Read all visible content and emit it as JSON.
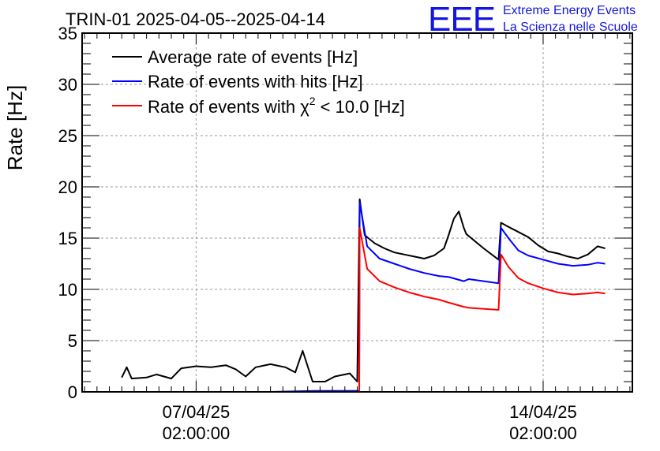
{
  "chart_data": {
    "type": "line",
    "title": "TRIN-01 2025-04-05--2025-04-14",
    "ylabel": "Rate [Hz]",
    "xlabel": "",
    "ylim": [
      0,
      35
    ],
    "y_ticks": [
      "0",
      "5",
      "10",
      "15",
      "20",
      "25",
      "30",
      "35"
    ],
    "x_ticks": [
      {
        "x": 2.0,
        "line1": "07/04/25",
        "line2": "02:00:00"
      },
      {
        "x": 9.0,
        "line1": "14/04/25",
        "line2": "02:00:00"
      }
    ],
    "xlim": [
      -0.3,
      10.8
    ],
    "grid": true,
    "legend_position": "top-left",
    "series": [
      {
        "name": "Average rate of events [Hz]",
        "color": "#000000",
        "points": [
          [
            0.5,
            1.4
          ],
          [
            0.6,
            2.4
          ],
          [
            0.7,
            1.3
          ],
          [
            1.0,
            1.4
          ],
          [
            1.2,
            1.7
          ],
          [
            1.5,
            1.3
          ],
          [
            1.7,
            2.3
          ],
          [
            2.0,
            2.5
          ],
          [
            2.3,
            2.4
          ],
          [
            2.6,
            2.6
          ],
          [
            2.8,
            2.2
          ],
          [
            3.0,
            1.5
          ],
          [
            3.2,
            2.4
          ],
          [
            3.5,
            2.7
          ],
          [
            3.8,
            2.4
          ],
          [
            4.0,
            1.9
          ],
          [
            4.15,
            4.0
          ],
          [
            4.35,
            1.0
          ],
          [
            4.6,
            1.0
          ],
          [
            4.8,
            1.5
          ],
          [
            5.1,
            1.8
          ],
          [
            5.25,
            1.0
          ],
          [
            5.3,
            18.8
          ],
          [
            5.4,
            15.3
          ],
          [
            5.6,
            14.5
          ],
          [
            5.8,
            14.0
          ],
          [
            6.0,
            13.6
          ],
          [
            6.2,
            13.4
          ],
          [
            6.4,
            13.2
          ],
          [
            6.6,
            13.0
          ],
          [
            6.8,
            13.3
          ],
          [
            7.0,
            14.0
          ],
          [
            7.1,
            15.4
          ],
          [
            7.2,
            16.9
          ],
          [
            7.3,
            17.6
          ],
          [
            7.4,
            16.0
          ],
          [
            7.45,
            15.4
          ],
          [
            7.8,
            14.0
          ],
          [
            8.1,
            12.9
          ],
          [
            8.15,
            16.5
          ],
          [
            8.3,
            16.1
          ],
          [
            8.5,
            15.6
          ],
          [
            8.7,
            15.1
          ],
          [
            8.9,
            14.3
          ],
          [
            9.1,
            13.7
          ],
          [
            9.3,
            13.5
          ],
          [
            9.5,
            13.2
          ],
          [
            9.7,
            13.0
          ],
          [
            9.9,
            13.4
          ],
          [
            10.1,
            14.2
          ],
          [
            10.25,
            14.0
          ]
        ]
      },
      {
        "name": "Rate of events with hits [Hz]",
        "color": "#0000ff",
        "points": [
          [
            0.5,
            0.0
          ],
          [
            3.5,
            0.0
          ],
          [
            4.4,
            0.1
          ],
          [
            4.7,
            0.1
          ],
          [
            5.29,
            0.1
          ],
          [
            5.3,
            18.5
          ],
          [
            5.45,
            14.2
          ],
          [
            5.7,
            13.0
          ],
          [
            6.0,
            12.5
          ],
          [
            6.3,
            12.0
          ],
          [
            6.6,
            11.6
          ],
          [
            6.9,
            11.3
          ],
          [
            7.1,
            11.2
          ],
          [
            7.4,
            10.8
          ],
          [
            7.5,
            11.0
          ],
          [
            8.1,
            10.6
          ],
          [
            8.15,
            16.0
          ],
          [
            8.3,
            15.0
          ],
          [
            8.5,
            13.8
          ],
          [
            8.7,
            13.3
          ],
          [
            9.0,
            12.9
          ],
          [
            9.3,
            12.5
          ],
          [
            9.6,
            12.3
          ],
          [
            9.9,
            12.4
          ],
          [
            10.1,
            12.6
          ],
          [
            10.25,
            12.5
          ]
        ]
      },
      {
        "name": "Rate of events with χ² < 10.0 [Hz]",
        "color": "#ff0000",
        "points": [
          [
            0.5,
            0.0
          ],
          [
            5.29,
            0.0
          ],
          [
            5.3,
            16.0
          ],
          [
            5.45,
            12.0
          ],
          [
            5.7,
            10.8
          ],
          [
            6.0,
            10.2
          ],
          [
            6.3,
            9.7
          ],
          [
            6.6,
            9.3
          ],
          [
            6.9,
            9.0
          ],
          [
            7.1,
            8.7
          ],
          [
            7.4,
            8.3
          ],
          [
            7.5,
            8.2
          ],
          [
            8.1,
            8.0
          ],
          [
            8.15,
            13.4
          ],
          [
            8.3,
            12.2
          ],
          [
            8.5,
            11.1
          ],
          [
            8.7,
            10.6
          ],
          [
            9.0,
            10.1
          ],
          [
            9.3,
            9.7
          ],
          [
            9.6,
            9.5
          ],
          [
            9.9,
            9.6
          ],
          [
            10.1,
            9.7
          ],
          [
            10.25,
            9.6
          ]
        ]
      }
    ]
  },
  "legend": {
    "avg_label": "Average rate of events [Hz]",
    "hits_label": "Rate of events with hits [Hz]",
    "chi2_label_pre": "Rate of events with χ",
    "chi2_label_sup": "2",
    "chi2_label_post": " < 10.0 [Hz]"
  },
  "brand": {
    "logo": "EEE",
    "line1": "Extreme Energy Events",
    "line2": "La Scienza nelle Scuole",
    "color": "#1515e0"
  }
}
